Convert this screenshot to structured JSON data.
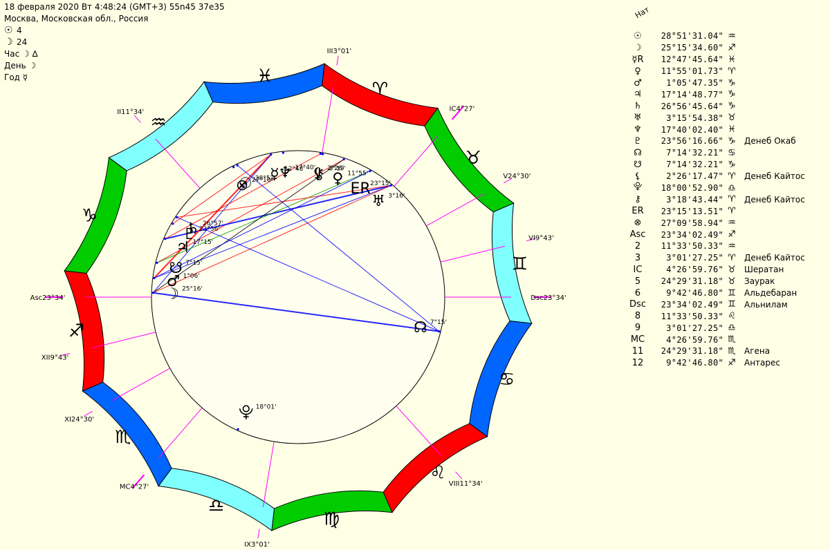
{
  "header": {
    "line1": "18 февраля 2020  Вт   4:48:24 (GMT+3) 55n45  37e35",
    "line2": "Москва, Московская обл., Россия",
    "rows": [
      {
        "glyph": "☉",
        "text": "4"
      },
      {
        "glyph": "☽",
        "text": "24"
      },
      {
        "glyph": "☽ ∆",
        "text": "Час"
      },
      {
        "glyph": "☽",
        "text": "День"
      },
      {
        "glyph": "☿",
        "text": "Год"
      }
    ]
  },
  "panel": {
    "title": "Нат",
    "rows": [
      {
        "g": "☉",
        "v": "28°51'31.04\"",
        "s": "♒",
        "star": ""
      },
      {
        "g": "☽",
        "v": "25°15'34.60\"",
        "s": "♐",
        "star": ""
      },
      {
        "g": "☿R",
        "v": "12°47'45.64\"",
        "s": "♓",
        "star": ""
      },
      {
        "g": "♀",
        "v": "11°55'01.73\"",
        "s": "♈",
        "star": ""
      },
      {
        "g": "♂",
        "v": "1°05'47.35\"",
        "s": "♑",
        "star": ""
      },
      {
        "g": "♃",
        "v": "17°14'48.77\"",
        "s": "♑",
        "star": ""
      },
      {
        "g": "♄",
        "v": "26°56'45.64\"",
        "s": "♑",
        "star": ""
      },
      {
        "g": "♅",
        "v": "3°15'54.38\"",
        "s": "♉",
        "star": ""
      },
      {
        "g": "♆",
        "v": "17°40'02.40\"",
        "s": "♓",
        "star": ""
      },
      {
        "g": "♇",
        "v": "23°56'16.66\"",
        "s": "♑",
        "star": "Денеб Окаб"
      },
      {
        "g": "☊",
        "v": "7°14'32.21\"",
        "s": "♋",
        "star": ""
      },
      {
        "g": "☋",
        "v": "7°14'32.21\"",
        "s": "♑",
        "star": ""
      },
      {
        "g": "⚸",
        "v": "2°26'17.47\"",
        "s": "♈",
        "star": "Денеб Кайтос"
      },
      {
        "g": "⯓",
        "v": "18°00'52.90\"",
        "s": "♎",
        "star": ""
      },
      {
        "g": "⚷",
        "v": "3°18'43.44\"",
        "s": "♈",
        "star": "Денеб Кайтос"
      },
      {
        "g": "ER",
        "v": "23°15'13.51\"",
        "s": "♈",
        "star": ""
      },
      {
        "g": "⊗",
        "v": "27°09'58.94\"",
        "s": "♒",
        "star": ""
      },
      {
        "g": "Asc",
        "v": "23°34'02.49\"",
        "s": "♐",
        "star": ""
      },
      {
        "g": "2",
        "v": "11°33'50.33\"",
        "s": "♒",
        "star": ""
      },
      {
        "g": "3",
        "v": "3°01'27.25\"",
        "s": "♈",
        "star": "Денеб Кайтос"
      },
      {
        "g": "IC",
        "v": "4°26'59.76\"",
        "s": "♉",
        "star": "Шератан"
      },
      {
        "g": "5",
        "v": "24°29'31.18\"",
        "s": "♉",
        "star": "Заурак"
      },
      {
        "g": "6",
        "v": "9°42'46.80\"",
        "s": "♊",
        "star": "Альдебаран"
      },
      {
        "g": "Dsc",
        "v": "23°34'02.49\"",
        "s": "♊",
        "star": "Альнилам"
      },
      {
        "g": "8",
        "v": "11°33'50.33\"",
        "s": "♌",
        "star": ""
      },
      {
        "g": "9",
        "v": "3°01'27.25\"",
        "s": "♎",
        "star": ""
      },
      {
        "g": "MC",
        "v": "4°26'59.76\"",
        "s": "♏",
        "star": ""
      },
      {
        "g": "11",
        "v": "24°29'31.18\"",
        "s": "♏",
        "star": "Агена"
      },
      {
        "g": "12",
        "v": "9°42'46.80\"",
        "s": "♐",
        "star": "Антарес"
      }
    ]
  },
  "wheel": {
    "asc_longitude": 263.5673,
    "sign_colors": [
      "#ff0000",
      "#00cc00",
      "#80ffff",
      "#0066ff"
    ],
    "signs": [
      "♈",
      "♉",
      "♊",
      "♋",
      "♌",
      "♍",
      "♎",
      "♏",
      "♐",
      "♑",
      "♒",
      "♓"
    ],
    "cusps": [
      {
        "label": "Asc",
        "deg": "23°34'",
        "lon": 263.5673
      },
      {
        "label": "II",
        "deg": "11°34'",
        "lon": 311.564
      },
      {
        "label": "III",
        "deg": "3°01'",
        "lon": 3.0242
      },
      {
        "label": "IC",
        "deg": "4°27'",
        "lon": 34.45
      },
      {
        "label": "V",
        "deg": "24°30'",
        "lon": 54.492
      },
      {
        "label": "VI",
        "deg": "9°43'",
        "lon": 69.713
      },
      {
        "label": "Dsc",
        "deg": "23°34'",
        "lon": 83.5673
      },
      {
        "label": "VIII",
        "deg": "11°34'",
        "lon": 131.564
      },
      {
        "label": "IX",
        "deg": "3°01'",
        "lon": 183.0242
      },
      {
        "label": "MC",
        "deg": "4°27'",
        "lon": 214.45
      },
      {
        "label": "XI",
        "deg": "24°30'",
        "lon": 234.492
      },
      {
        "label": "XII",
        "deg": "9°43'",
        "lon": 249.713
      }
    ],
    "bodies": [
      {
        "glyph": "☽",
        "deg": "25°16'",
        "lon": 265.26
      },
      {
        "glyph": "♂",
        "deg": "1°06'",
        "lon": 271.1
      },
      {
        "glyph": "☋",
        "deg": "7°15'",
        "lon": 277.24
      },
      {
        "glyph": "♃",
        "deg": "17°15'",
        "lon": 287.25
      },
      {
        "glyph": "♄",
        "deg": "26°57'",
        "lon": 296.95
      },
      {
        "glyph": "♇",
        "deg": "23°56'",
        "lon": 293.94
      },
      {
        "glyph": "☉",
        "deg": "28°52'",
        "lon": 328.86
      },
      {
        "glyph": "⊗",
        "deg": "27°10'",
        "lon": 327.17
      },
      {
        "glyph": "☿",
        "deg": "12°48'",
        "lon": 342.8
      },
      {
        "glyph": "♆",
        "deg": "17°40'",
        "lon": 347.67
      },
      {
        "glyph": "⚸",
        "deg": "2°26'",
        "lon": 2.44
      },
      {
        "glyph": "⚷",
        "deg": "3°19'",
        "lon": 3.31
      },
      {
        "glyph": "♀",
        "deg": "11°55'",
        "lon": 11.92
      },
      {
        "glyph": "ER",
        "deg": "23°15'",
        "lon": 23.25
      },
      {
        "glyph": "♅",
        "deg": "3°16'",
        "lon": 33.27
      },
      {
        "glyph": "☊",
        "deg": "7°15'",
        "lon": 97.24
      },
      {
        "glyph": "⯓",
        "deg": "18°01'",
        "lon": 198.01
      }
    ]
  }
}
